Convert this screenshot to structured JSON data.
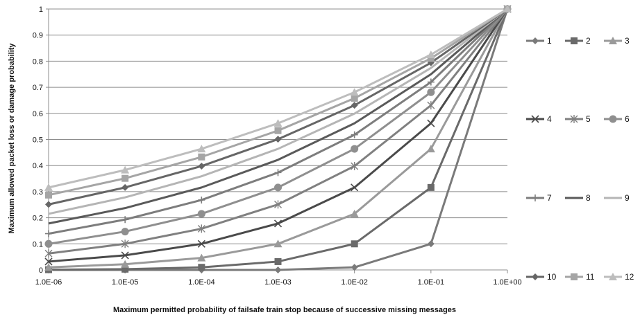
{
  "chart_data": {
    "type": "line",
    "title": "",
    "xlabel": "Maximum permitted probability of failsafe train stop because of successive missing messages",
    "ylabel": "Maximum allowed packet loss or damage probability",
    "x": [
      "1.0E-06",
      "1.0E-05",
      "1.0E-04",
      "1.0E-03",
      "1.0E-02",
      "1.0E-01",
      "1.0E+00"
    ],
    "y_ticks": [
      "0",
      "0.1",
      "0.2",
      "0.3",
      "0.4",
      "0.5",
      "0.6",
      "0.7",
      "0.8",
      "0.9",
      "1"
    ],
    "ylim": [
      0,
      1
    ],
    "grid": "horizontal",
    "legend_position": "right",
    "series": [
      {
        "name": "1",
        "marker": "diamond",
        "color": "#7a7a7a",
        "values": [
          0.0,
          0.0,
          0.0,
          0.0,
          0.01,
          0.1,
          1.0
        ]
      },
      {
        "name": "2",
        "marker": "square",
        "color": "#6a6a6a",
        "values": [
          0.001,
          0.003,
          0.01,
          0.032,
          0.1,
          0.316,
          1.0
        ]
      },
      {
        "name": "3",
        "marker": "triangle",
        "color": "#9a9a9a",
        "values": [
          0.01,
          0.022,
          0.046,
          0.1,
          0.215,
          0.464,
          1.0
        ]
      },
      {
        "name": "4",
        "marker": "x",
        "color": "#4a4a4a",
        "values": [
          0.032,
          0.056,
          0.1,
          0.178,
          0.316,
          0.562,
          1.0
        ]
      },
      {
        "name": "5",
        "marker": "star",
        "color": "#808080",
        "values": [
          0.063,
          0.1,
          0.158,
          0.251,
          0.398,
          0.631,
          1.0
        ]
      },
      {
        "name": "6",
        "marker": "circle",
        "color": "#8f8f8f",
        "values": [
          0.1,
          0.147,
          0.215,
          0.316,
          0.464,
          0.681,
          1.0
        ]
      },
      {
        "name": "7",
        "marker": "plus",
        "color": "#7d7d7d",
        "values": [
          0.139,
          0.193,
          0.268,
          0.373,
          0.518,
          0.72,
          1.0
        ]
      },
      {
        "name": "8",
        "marker": "none",
        "color": "#5a5a5a",
        "values": [
          0.178,
          0.237,
          0.316,
          0.422,
          0.562,
          0.75,
          1.0
        ]
      },
      {
        "name": "9",
        "marker": "none",
        "color": "#b5b5b5",
        "values": [
          0.215,
          0.278,
          0.359,
          0.464,
          0.599,
          0.774,
          1.0
        ]
      },
      {
        "name": "10",
        "marker": "diamond",
        "color": "#666666",
        "values": [
          0.251,
          0.316,
          0.398,
          0.501,
          0.631,
          0.794,
          1.0
        ]
      },
      {
        "name": "11",
        "marker": "square",
        "color": "#a5a5a5",
        "values": [
          0.287,
          0.351,
          0.433,
          0.534,
          0.658,
          0.811,
          1.0
        ]
      },
      {
        "name": "12",
        "marker": "triangle",
        "color": "#bdbdbd",
        "values": [
          0.316,
          0.383,
          0.464,
          0.562,
          0.681,
          0.825,
          1.0
        ]
      }
    ]
  }
}
